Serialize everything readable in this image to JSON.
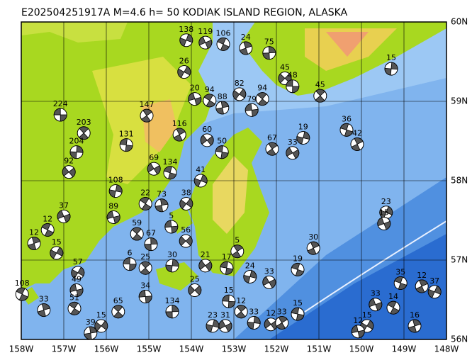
{
  "map": {
    "title": "E202504251917A M=4.6 h= 50 KODIAK ISLAND REGION, ALASKA",
    "lonlim": [
      -158,
      -148
    ],
    "latlim": [
      56,
      60
    ],
    "lonticks": [
      {
        "value": -158,
        "label": "158W"
      },
      {
        "value": -157,
        "label": "157W"
      },
      {
        "value": -156,
        "label": "156W"
      },
      {
        "value": -155,
        "label": "155W"
      },
      {
        "value": -154,
        "label": "154W"
      },
      {
        "value": -153,
        "label": "153W"
      },
      {
        "value": -152,
        "label": "152W"
      },
      {
        "value": -151,
        "label": "151W"
      },
      {
        "value": -150,
        "label": "150W"
      },
      {
        "value": -149,
        "label": "149W"
      },
      {
        "value": -148,
        "label": "148W"
      }
    ],
    "latticks": [
      {
        "value": 60,
        "label": "60N"
      },
      {
        "value": 59,
        "label": "59N"
      },
      {
        "value": 58,
        "label": "58N"
      },
      {
        "value": 57,
        "label": "57N"
      },
      {
        "value": 56,
        "label": "56N"
      }
    ],
    "events": [
      {
        "lon": -157.08,
        "lat": 58.83,
        "depth": 224
      },
      {
        "lon": -156.53,
        "lat": 58.6,
        "depth": 203
      },
      {
        "lon": -156.7,
        "lat": 58.36,
        "depth": 204
      },
      {
        "lon": -156.88,
        "lat": 58.11,
        "depth": 92
      },
      {
        "lon": -155.53,
        "lat": 58.45,
        "depth": 131
      },
      {
        "lon": -155.05,
        "lat": 58.82,
        "depth": 147
      },
      {
        "lon": -155.78,
        "lat": 57.87,
        "depth": 108
      },
      {
        "lon": -154.88,
        "lat": 58.15,
        "depth": 69
      },
      {
        "lon": -154.5,
        "lat": 58.1,
        "depth": 134
      },
      {
        "lon": -154.28,
        "lat": 58.58,
        "depth": 116
      },
      {
        "lon": -154.12,
        "lat": 59.77,
        "depth": 138
      },
      {
        "lon": -153.67,
        "lat": 59.74,
        "depth": 119
      },
      {
        "lon": -153.25,
        "lat": 59.72,
        "depth": 106
      },
      {
        "lon": -152.72,
        "lat": 59.67,
        "depth": 24
      },
      {
        "lon": -154.17,
        "lat": 59.37,
        "depth": 26
      },
      {
        "lon": -153.92,
        "lat": 59.03,
        "depth": 20
      },
      {
        "lon": -153.57,
        "lat": 59.01,
        "depth": 94
      },
      {
        "lon": -153.27,
        "lat": 58.92,
        "depth": 88
      },
      {
        "lon": -152.87,
        "lat": 59.09,
        "depth": 82
      },
      {
        "lon": -152.58,
        "lat": 58.89,
        "depth": 79
      },
      {
        "lon": -152.33,
        "lat": 59.03,
        "depth": 94
      },
      {
        "lon": -152.17,
        "lat": 59.61,
        "depth": 75
      },
      {
        "lon": -151.8,
        "lat": 59.29,
        "depth": 45
      },
      {
        "lon": -151.62,
        "lat": 59.19,
        "depth": 48
      },
      {
        "lon": -150.97,
        "lat": 59.07,
        "depth": 45
      },
      {
        "lon": -149.3,
        "lat": 59.41,
        "depth": 15
      },
      {
        "lon": -153.63,
        "lat": 58.51,
        "depth": 60
      },
      {
        "lon": -153.28,
        "lat": 58.36,
        "depth": 50
      },
      {
        "lon": -152.1,
        "lat": 58.4,
        "depth": 67
      },
      {
        "lon": -151.37,
        "lat": 58.54,
        "depth": 19
      },
      {
        "lon": -151.62,
        "lat": 58.35,
        "depth": 33
      },
      {
        "lon": -150.35,
        "lat": 58.64,
        "depth": 36
      },
      {
        "lon": -150.1,
        "lat": 58.46,
        "depth": 42
      },
      {
        "lon": -153.78,
        "lat": 58.0,
        "depth": 41
      },
      {
        "lon": -157.0,
        "lat": 57.55,
        "depth": 37
      },
      {
        "lon": -157.38,
        "lat": 57.38,
        "depth": 12
      },
      {
        "lon": -157.7,
        "lat": 57.21,
        "depth": 12
      },
      {
        "lon": -157.17,
        "lat": 57.09,
        "depth": 15
      },
      {
        "lon": -155.83,
        "lat": 57.54,
        "depth": 89
      },
      {
        "lon": -155.08,
        "lat": 57.71,
        "depth": 22
      },
      {
        "lon": -154.7,
        "lat": 57.69,
        "depth": 73
      },
      {
        "lon": -154.12,
        "lat": 57.71,
        "depth": 38
      },
      {
        "lon": -154.47,
        "lat": 57.42,
        "depth": 5
      },
      {
        "lon": -155.28,
        "lat": 57.33,
        "depth": 59
      },
      {
        "lon": -154.95,
        "lat": 57.2,
        "depth": 67
      },
      {
        "lon": -154.13,
        "lat": 57.24,
        "depth": 56
      },
      {
        "lon": -155.45,
        "lat": 56.95,
        "depth": 6
      },
      {
        "lon": -155.08,
        "lat": 56.9,
        "depth": 25
      },
      {
        "lon": -154.45,
        "lat": 56.93,
        "depth": 30
      },
      {
        "lon": -153.67,
        "lat": 56.93,
        "depth": 21
      },
      {
        "lon": -153.17,
        "lat": 56.9,
        "depth": 17
      },
      {
        "lon": -152.92,
        "lat": 57.11,
        "depth": 5
      },
      {
        "lon": -152.62,
        "lat": 56.79,
        "depth": 24
      },
      {
        "lon": -152.17,
        "lat": 56.72,
        "depth": 33
      },
      {
        "lon": -151.5,
        "lat": 56.88,
        "depth": 19
      },
      {
        "lon": -151.13,
        "lat": 57.15,
        "depth": 30
      },
      {
        "lon": -149.42,
        "lat": 57.6,
        "depth": 23
      },
      {
        "lon": -149.47,
        "lat": 57.46,
        "depth": 15
      },
      {
        "lon": -157.98,
        "lat": 56.57,
        "depth": 108
      },
      {
        "lon": -157.47,
        "lat": 56.37,
        "depth": 33
      },
      {
        "lon": -156.67,
        "lat": 56.84,
        "depth": 57
      },
      {
        "lon": -156.7,
        "lat": 56.62,
        "depth": 49
      },
      {
        "lon": -156.75,
        "lat": 56.39,
        "depth": 51
      },
      {
        "lon": -156.37,
        "lat": 56.08,
        "depth": 39
      },
      {
        "lon": -156.12,
        "lat": 56.17,
        "depth": 15
      },
      {
        "lon": -155.08,
        "lat": 56.54,
        "depth": 34
      },
      {
        "lon": -155.72,
        "lat": 56.35,
        "depth": 65
      },
      {
        "lon": -154.45,
        "lat": 56.35,
        "depth": 134
      },
      {
        "lon": -153.92,
        "lat": 56.62,
        "depth": 25
      },
      {
        "lon": -153.12,
        "lat": 56.48,
        "depth": 15
      },
      {
        "lon": -152.83,
        "lat": 56.35,
        "depth": 12
      },
      {
        "lon": -152.53,
        "lat": 56.21,
        "depth": 33
      },
      {
        "lon": -152.13,
        "lat": 56.19,
        "depth": 12
      },
      {
        "lon": -151.5,
        "lat": 56.32,
        "depth": 15
      },
      {
        "lon": -151.87,
        "lat": 56.21,
        "depth": 33
      },
      {
        "lon": -153.5,
        "lat": 56.17,
        "depth": 23
      },
      {
        "lon": -153.2,
        "lat": 56.17,
        "depth": 31
      },
      {
        "lon": -149.08,
        "lat": 56.71,
        "depth": 35
      },
      {
        "lon": -148.58,
        "lat": 56.67,
        "depth": 12
      },
      {
        "lon": -148.28,
        "lat": 56.6,
        "depth": 37
      },
      {
        "lon": -149.67,
        "lat": 56.44,
        "depth": 33
      },
      {
        "lon": -149.25,
        "lat": 56.4,
        "depth": 14
      },
      {
        "lon": -148.75,
        "lat": 56.17,
        "depth": 16
      },
      {
        "lon": -149.87,
        "lat": 56.17,
        "depth": 15
      },
      {
        "lon": -150.08,
        "lat": 56.1,
        "depth": 12
      }
    ]
  }
}
